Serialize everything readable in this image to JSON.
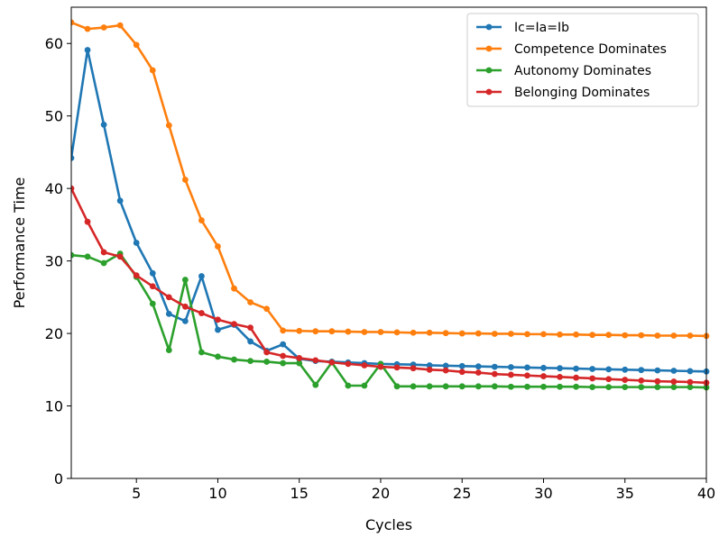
{
  "chart_data": {
    "type": "line",
    "title": "",
    "xlabel": "Cycles",
    "ylabel": "Performance Time",
    "xlim": [
      1,
      40
    ],
    "ylim": [
      0,
      65
    ],
    "xticks": [
      5,
      10,
      15,
      20,
      25,
      30,
      35,
      40
    ],
    "yticks": [
      0,
      10,
      20,
      30,
      40,
      50,
      60
    ],
    "grid": false,
    "legend_position": "top-right",
    "x": [
      1,
      2,
      3,
      4,
      5,
      6,
      7,
      8,
      9,
      10,
      11,
      12,
      13,
      14,
      15,
      16,
      17,
      18,
      19,
      20,
      21,
      22,
      23,
      24,
      25,
      26,
      27,
      28,
      29,
      30,
      31,
      32,
      33,
      34,
      35,
      36,
      37,
      38,
      39,
      40
    ],
    "series": [
      {
        "name": "Ic=Ia=Ib",
        "color": "#1f77b4",
        "values": [
          44.2,
          59.1,
          48.8,
          38.3,
          32.5,
          28.3,
          22.7,
          21.7,
          27.9,
          20.5,
          21.2,
          18.9,
          17.6,
          18.5,
          16.5,
          16.2,
          16.1,
          16.0,
          15.9,
          15.8,
          15.75,
          15.7,
          15.6,
          15.55,
          15.5,
          15.45,
          15.4,
          15.35,
          15.3,
          15.25,
          15.2,
          15.15,
          15.1,
          15.05,
          15.0,
          14.95,
          14.9,
          14.85,
          14.8,
          14.75
        ]
      },
      {
        "name": "Competence Dominates",
        "color": "#ff7f0e",
        "values": [
          62.9,
          62.0,
          62.2,
          62.5,
          59.8,
          56.3,
          48.7,
          41.2,
          35.6,
          32.0,
          26.2,
          24.3,
          23.4,
          20.4,
          20.35,
          20.3,
          20.3,
          20.25,
          20.2,
          20.2,
          20.15,
          20.1,
          20.1,
          20.05,
          20.0,
          20.0,
          19.95,
          19.95,
          19.9,
          19.9,
          19.85,
          19.85,
          19.8,
          19.8,
          19.75,
          19.75,
          19.7,
          19.7,
          19.7,
          19.65
        ]
      },
      {
        "name": "Autonomy Dominates",
        "color": "#2ca02c",
        "values": [
          30.8,
          30.6,
          29.7,
          31.0,
          27.8,
          24.1,
          17.7,
          27.4,
          17.4,
          16.8,
          16.4,
          16.2,
          16.1,
          15.9,
          15.9,
          12.9,
          16.0,
          12.8,
          12.8,
          15.8,
          12.7,
          12.7,
          12.7,
          12.7,
          12.7,
          12.7,
          12.7,
          12.65,
          12.65,
          12.65,
          12.65,
          12.65,
          12.6,
          12.6,
          12.6,
          12.6,
          12.6,
          12.6,
          12.6,
          12.55
        ]
      },
      {
        "name": "Belonging Dominates",
        "color": "#d62728",
        "values": [
          40.0,
          35.4,
          31.2,
          30.6,
          28.0,
          26.5,
          25.0,
          23.7,
          22.8,
          21.9,
          21.3,
          20.8,
          17.4,
          16.9,
          16.6,
          16.3,
          16.0,
          15.8,
          15.6,
          15.4,
          15.3,
          15.2,
          15.0,
          14.9,
          14.7,
          14.6,
          14.4,
          14.3,
          14.2,
          14.1,
          14.0,
          13.9,
          13.8,
          13.7,
          13.6,
          13.5,
          13.4,
          13.35,
          13.3,
          13.2
        ]
      }
    ]
  }
}
